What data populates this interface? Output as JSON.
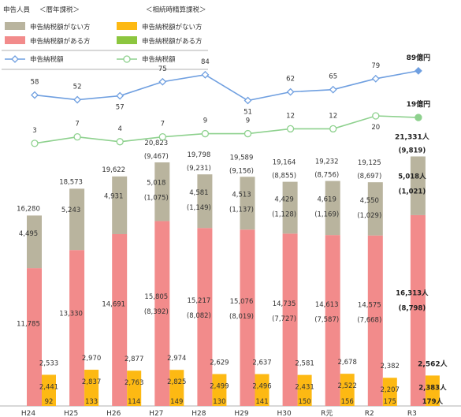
{
  "legend": {
    "taxpayer_heading": "申告人員",
    "group_heir": "＜暦年課税＞",
    "group_settle": "＜相続時精算課税＞",
    "no_tax": "申告納税額がない方",
    "with_tax": "申告納税額がある方",
    "tax_amount": "申告納税額"
  },
  "chart_data": {
    "type": "bar",
    "categories": [
      "H24",
      "H25",
      "H26",
      "H27",
      "H28",
      "H29",
      "H30",
      "R元",
      "R2",
      "R3"
    ],
    "series": [
      {
        "name": "申告納税額がない方（暦年課税）",
        "color": "#b9b49e",
        "values": [
          4495,
          5243,
          4931,
          5018,
          4581,
          4513,
          4429,
          4619,
          4550,
          5018
        ],
        "labels": [
          "4,495",
          "5,243",
          "4,931",
          "5,018",
          "4,581",
          "4,513",
          "4,429",
          "4,619",
          "4,550",
          "5,018人"
        ],
        "sublabels": [
          "",
          "",
          "",
          "(1,075)",
          "(1,149)",
          "(1,137)",
          "(1,128)",
          "(1,169)",
          "(1,029)",
          "(1,021)"
        ]
      },
      {
        "name": "申告納税額がある方（暦年課税）",
        "color": "#f28b8b",
        "values": [
          11785,
          13330,
          14691,
          15805,
          15217,
          15076,
          14735,
          14613,
          14575,
          16313
        ],
        "labels": [
          "11,785",
          "13,330",
          "14,691",
          "15,805",
          "15,217",
          "15,076",
          "14,735",
          "14,613",
          "14,575",
          "16,313人"
        ],
        "sublabels": [
          "",
          "",
          "",
          "(8,392)",
          "(8,082)",
          "(8,019)",
          "(7,727)",
          "(7,587)",
          "(7,668)",
          "(8,798)"
        ]
      },
      {
        "name": "申告納税額がない方（相続時精算課税）",
        "color": "#fdb913",
        "values": [
          2441,
          2837,
          2763,
          2825,
          2499,
          2496,
          2431,
          2522,
          2207,
          2383
        ],
        "labels": [
          "2,441",
          "2,837",
          "2,763",
          "2,825",
          "2,499",
          "2,496",
          "2,431",
          "2,522",
          "2,207",
          "2,383人"
        ]
      },
      {
        "name": "申告納税額がある方（相続時精算課税）",
        "color": "#8cc63f",
        "values": [
          92,
          133,
          114,
          149,
          130,
          141,
          150,
          156,
          175,
          179
        ],
        "labels": [
          "92",
          "133",
          "114",
          "149",
          "130",
          "141",
          "150",
          "156",
          "175",
          "179人"
        ]
      }
    ],
    "totals_heir": {
      "labels": [
        "16,280",
        "18,573",
        "19,622",
        "20,823",
        "19,798",
        "19,589",
        "19,164",
        "19,232",
        "19,125",
        "21,331人"
      ],
      "sublabels": [
        "",
        "",
        "",
        "(9,467)",
        "(9,231)",
        "(9,156)",
        "(8,855)",
        "(8,756)",
        "(8,697)",
        "(9,819)"
      ]
    },
    "totals_settle": [
      "2,533",
      "2,970",
      "2,877",
      "2,974",
      "2,629",
      "2,637",
      "2,581",
      "2,678",
      "2,382",
      "2,562人"
    ],
    "lines": [
      {
        "name": "申告納税額（暦年課税）",
        "color": "#6f9fe0",
        "values": [
          58,
          52,
          57,
          75,
          84,
          51,
          62,
          65,
          79,
          89
        ],
        "labels": [
          "58",
          "52",
          "57",
          "75",
          "84",
          "51",
          "62",
          "65",
          "79",
          "89億円"
        ]
      },
      {
        "name": "申告納税額（相続時精算課税）",
        "color": "#8ed18e",
        "values": [
          3,
          7,
          4,
          7,
          9,
          9,
          12,
          12,
          20,
          19
        ],
        "labels": [
          "3",
          "7",
          "4",
          "7",
          "9",
          "9",
          "12",
          "12",
          "20",
          "19億円"
        ]
      }
    ],
    "title": "",
    "xlabel": "",
    "ylabel": ""
  }
}
